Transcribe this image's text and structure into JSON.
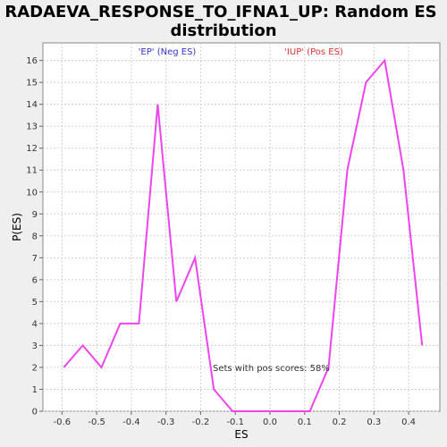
{
  "chart_data": {
    "type": "line",
    "title_lines": [
      "RADAEVA_RESPONSE_TO_IFNA1_UP: Random ES",
      "distribution"
    ],
    "xlabel": "ES",
    "ylabel": "P(ES)",
    "xlim": [
      -0.655,
      0.49
    ],
    "ylim": [
      0,
      16.8
    ],
    "x_ticks": [
      "-0.6",
      "-0.5",
      "-0.4",
      "-0.3",
      "-0.2",
      "-0.1",
      "0.0",
      "0.1",
      "0.2",
      "0.3",
      "0.4"
    ],
    "y_ticks": [
      "0",
      "1",
      "2",
      "3",
      "4",
      "5",
      "6",
      "7",
      "8",
      "9",
      "10",
      "11",
      "12",
      "13",
      "14",
      "15",
      "16"
    ],
    "grid": true,
    "line_color": "#ee44ee",
    "x": [
      -0.595,
      -0.54,
      -0.486,
      -0.432,
      -0.378,
      -0.324,
      -0.27,
      -0.216,
      -0.162,
      -0.108,
      -0.054,
      0.0,
      0.054,
      0.115,
      0.169,
      0.223,
      0.277,
      0.331,
      0.385,
      0.439
    ],
    "y": [
      2,
      3,
      2,
      4,
      4,
      14,
      5,
      7,
      1,
      0,
      0,
      0,
      0,
      0,
      2,
      11,
      15,
      16,
      11,
      3
    ],
    "annotations": {
      "neg_label": "'EP' (Neg ES)",
      "neg_color": "#3333cc",
      "pos_label": "'IUP' (Pos ES)",
      "pos_color": "#dd3333",
      "pos_scores_text": "Sets with pos scores: 58%"
    }
  }
}
